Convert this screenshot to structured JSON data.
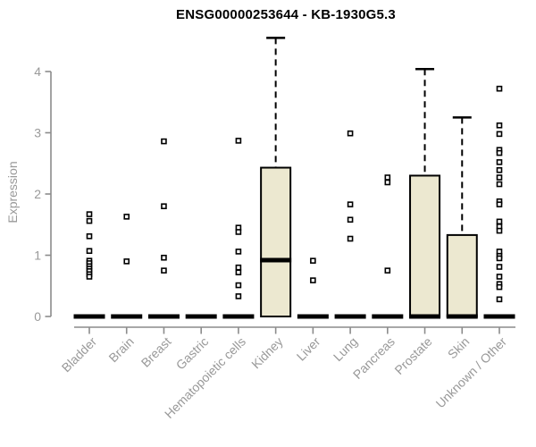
{
  "chart_data": {
    "type": "boxplot",
    "title": "ENSG00000253644 - KB-1930G5.3",
    "ylabel": "Expression",
    "ylim": [
      0,
      4
    ],
    "yticks": [
      0,
      1,
      2,
      3,
      4
    ],
    "grid": false,
    "legend": "none",
    "categories": [
      "Bladder",
      "Brain",
      "Breast",
      "Gastric",
      "Hematopoietic cells",
      "Kidney",
      "Liver",
      "Lung",
      "Pancreas",
      "Prostate",
      "Skin",
      "Unknown / Other"
    ],
    "boxes": [
      {
        "category": "Bladder",
        "q1": 0,
        "median": 0,
        "q3": 0,
        "whisker_low": 0,
        "whisker_high": 0,
        "outliers": [
          1.67,
          1.56,
          1.31,
          1.07,
          0.91,
          0.87,
          0.82,
          0.78,
          0.74,
          0.69,
          0.65
        ]
      },
      {
        "category": "Brain",
        "q1": 0,
        "median": 0,
        "q3": 0,
        "whisker_low": 0,
        "whisker_high": 0,
        "outliers": [
          1.63,
          0.9
        ]
      },
      {
        "category": "Breast",
        "q1": 0,
        "median": 0,
        "q3": 0,
        "whisker_low": 0,
        "whisker_high": 0,
        "outliers": [
          2.86,
          1.8,
          0.96,
          0.75
        ]
      },
      {
        "category": "Gastric",
        "q1": 0,
        "median": 0,
        "q3": 0,
        "whisker_low": 0,
        "whisker_high": 0,
        "outliers": []
      },
      {
        "category": "Hematopoietic cells",
        "q1": 0,
        "median": 0,
        "q3": 0,
        "whisker_low": 0,
        "whisker_high": 0,
        "outliers": [
          2.87,
          1.45,
          1.38,
          1.06,
          0.8,
          0.72,
          0.51,
          0.33
        ]
      },
      {
        "category": "Kidney",
        "q1": 0,
        "median": 0.92,
        "q3": 2.43,
        "whisker_low": 0,
        "whisker_high": 4.55,
        "outliers": []
      },
      {
        "category": "Liver",
        "q1": 0,
        "median": 0,
        "q3": 0,
        "whisker_low": 0,
        "whisker_high": 0,
        "outliers": [
          0.91,
          0.59
        ]
      },
      {
        "category": "Lung",
        "q1": 0,
        "median": 0,
        "q3": 0,
        "whisker_low": 0,
        "whisker_high": 0,
        "outliers": [
          2.99,
          1.83,
          1.58,
          1.27
        ]
      },
      {
        "category": "Pancreas",
        "q1": 0,
        "median": 0,
        "q3": 0,
        "whisker_low": 0,
        "whisker_high": 0,
        "outliers": [
          2.27,
          2.19,
          0.75
        ]
      },
      {
        "category": "Prostate",
        "q1": 0,
        "median": 0,
        "q3": 2.3,
        "whisker_low": 0,
        "whisker_high": 4.04,
        "outliers": []
      },
      {
        "category": "Skin",
        "q1": 0,
        "median": 0,
        "q3": 1.33,
        "whisker_low": 0,
        "whisker_high": 3.25,
        "outliers": []
      },
      {
        "category": "Unknown / Other",
        "q1": 0,
        "median": 0,
        "q3": 0,
        "whisker_low": 0,
        "whisker_high": 0,
        "outliers": [
          3.72,
          3.12,
          2.98,
          2.72,
          2.67,
          2.52,
          2.39,
          2.27,
          2.16,
          1.88,
          1.83,
          1.55,
          1.47,
          1.4,
          1.06,
          0.99,
          0.95,
          0.81,
          0.65,
          0.53,
          0.48,
          0.28
        ]
      }
    ],
    "colors": {
      "box_fill": "#ece8d0",
      "box_stroke": "#000000",
      "median": "#000000",
      "outlier_stroke": "#000000",
      "axis_line": "#8c8c8c",
      "tick_label": "#999999",
      "title": "#000000"
    }
  }
}
